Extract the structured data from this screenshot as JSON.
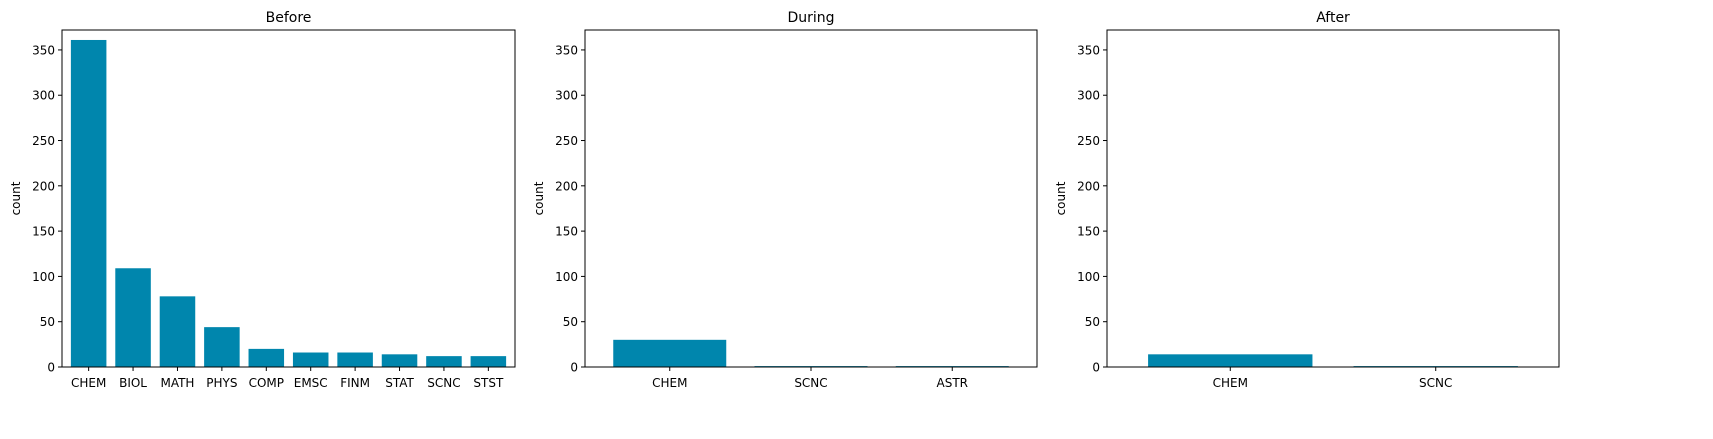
{
  "bar_color": "#0086AD",
  "chart_data": [
    {
      "type": "bar",
      "title": "Before",
      "xlabel": "",
      "ylabel": "count",
      "ylim": [
        0,
        372
      ],
      "yticks": [
        0,
        50,
        100,
        150,
        200,
        250,
        300,
        350
      ],
      "categories": [
        "CHEM",
        "BIOL",
        "MATH",
        "PHYS",
        "COMP",
        "EMSC",
        "FINM",
        "STAT",
        "SCNC",
        "STST"
      ],
      "values": [
        361,
        109,
        78,
        44,
        20,
        16,
        16,
        14,
        12,
        12
      ]
    },
    {
      "type": "bar",
      "title": "During",
      "xlabel": "",
      "ylabel": "count",
      "ylim": [
        0,
        372
      ],
      "yticks": [
        0,
        50,
        100,
        150,
        200,
        250,
        300,
        350
      ],
      "categories": [
        "CHEM",
        "SCNC",
        "ASTR"
      ],
      "values": [
        30,
        1,
        1
      ]
    },
    {
      "type": "bar",
      "title": "After",
      "xlabel": "",
      "ylabel": "count",
      "ylim": [
        0,
        372
      ],
      "yticks": [
        0,
        50,
        100,
        150,
        200,
        250,
        300,
        350
      ],
      "categories": [
        "CHEM",
        "SCNC"
      ],
      "values": [
        14,
        1
      ]
    }
  ]
}
